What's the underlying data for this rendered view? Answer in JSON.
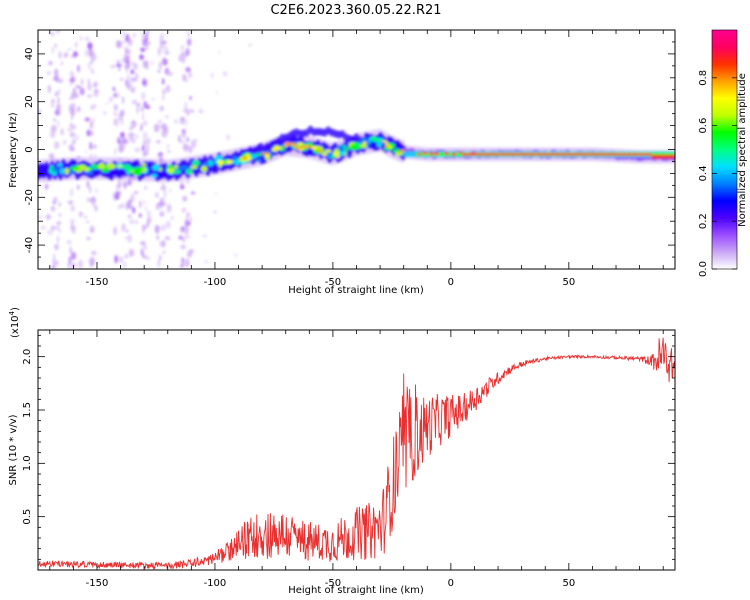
{
  "title": "C2E6.2023.360.05.22.R21",
  "chart_data": [
    {
      "type": "heatmap",
      "name": "spectrogram",
      "xlabel": "Height of straight line (km)",
      "ylabel": "Frequency (Hz)",
      "xlim": [
        -175,
        95
      ],
      "ylim": [
        -50,
        50
      ],
      "xticks": [
        -150,
        -100,
        -50,
        0,
        50
      ],
      "yticks": [
        -40,
        -20,
        0,
        20,
        40
      ],
      "colorbar": {
        "label": "Normalized spectral amplitude",
        "range": [
          0,
          1
        ],
        "ticks": [
          "0.0",
          "0.2",
          "0.4",
          "0.6",
          "0.8"
        ],
        "colors": [
          "#ffffff",
          "#c9a6f5",
          "#9a4dff",
          "#4b00ff",
          "#0000ff",
          "#0080ff",
          "#00e0ff",
          "#00ff80",
          "#00ff00",
          "#c0ff00",
          "#ffff00",
          "#ffa000",
          "#ff3000",
          "#ff0060",
          "#ff0090"
        ]
      },
      "ridge": {
        "description": "dominant frequency track (Hz) vs height (km)",
        "x": [
          -175,
          -160,
          -140,
          -120,
          -100,
          -90,
          -80,
          -70,
          -60,
          -50,
          -40,
          -30,
          -25,
          -20,
          -10,
          0,
          20,
          40,
          60,
          80,
          95
        ],
        "y": [
          -9,
          -8,
          -8,
          -9,
          -6,
          -4,
          -2,
          2,
          1,
          -2,
          2,
          4,
          1,
          -1,
          -2,
          -2,
          -2,
          -2,
          -2,
          -3,
          -3
        ]
      }
    },
    {
      "type": "line",
      "name": "snr",
      "xlabel": "Height of straight line (km)",
      "ylabel": "SNR (10 * v/v)",
      "yscale_label": "(x10",
      "yscale_exp": "4",
      "yscale_close": ")",
      "xlim": [
        -175,
        95
      ],
      "ylim": [
        0,
        22500
      ],
      "xticks": [
        -150,
        -100,
        -50,
        0,
        50
      ],
      "yticks": [
        5000,
        10000,
        15000,
        20000
      ],
      "ytick_labels": [
        "0.5",
        "1.0",
        "1.5",
        "2.0"
      ],
      "series": [
        {
          "name": "SNR",
          "color": "#e83030",
          "envelope_x": [
            -175,
            -150,
            -120,
            -110,
            -100,
            -95,
            -90,
            -85,
            -80,
            -75,
            -70,
            -65,
            -60,
            -55,
            -50,
            -45,
            -40,
            -35,
            -30,
            -28,
            -26,
            -24,
            -22,
            -20,
            -18,
            -15,
            -12,
            -10,
            -5,
            0,
            5,
            10,
            15,
            20,
            25,
            30,
            35,
            40,
            50,
            60,
            70,
            80,
            85,
            88,
            90,
            92,
            95
          ],
          "envelope_y": [
            600,
            500,
            400,
            600,
            1100,
            1700,
            2300,
            3100,
            3400,
            3400,
            3300,
            2900,
            2700,
            2600,
            2600,
            3000,
            3400,
            3600,
            4000,
            5000,
            7000,
            8500,
            10000,
            11000,
            12000,
            12500,
            13000,
            13500,
            14000,
            14500,
            15000,
            16000,
            17000,
            18000,
            18800,
            19300,
            19600,
            19800,
            20000,
            20000,
            19900,
            19800,
            19600,
            19800,
            20000,
            19500,
            19000
          ],
          "noise": [
            300,
            300,
            300,
            400,
            600,
            900,
            1500,
            2000,
            2400,
            2400,
            2300,
            2100,
            1900,
            1800,
            1900,
            2200,
            2500,
            2700,
            3000,
            3400,
            4000,
            4500,
            5000,
            4800,
            4500,
            4000,
            3500,
            3000,
            2500,
            2000,
            1500,
            1200,
            900,
            600,
            400,
            300,
            200,
            150,
            120,
            120,
            150,
            200,
            500,
            2000,
            2500,
            2000,
            1200
          ]
        }
      ]
    }
  ]
}
